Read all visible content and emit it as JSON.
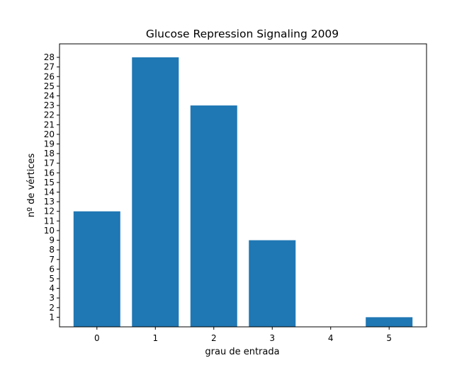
{
  "chart_data": {
    "type": "bar",
    "title": "Glucose Repression Signaling 2009",
    "xlabel": "grau de entrada",
    "ylabel": "nº de vértices",
    "categories": [
      "0",
      "1",
      "2",
      "3",
      "4",
      "5"
    ],
    "values": [
      12,
      28,
      23,
      9,
      0,
      1
    ],
    "yticks": [
      1,
      2,
      3,
      4,
      5,
      6,
      7,
      8,
      9,
      10,
      11,
      12,
      13,
      14,
      15,
      16,
      17,
      18,
      19,
      20,
      21,
      22,
      23,
      24,
      25,
      26,
      27,
      28
    ],
    "ylim": [
      0,
      29.4
    ],
    "xlim": [
      -0.64,
      5.64
    ],
    "bar_color": "#1f77b4",
    "grid": false,
    "legend": "none"
  }
}
